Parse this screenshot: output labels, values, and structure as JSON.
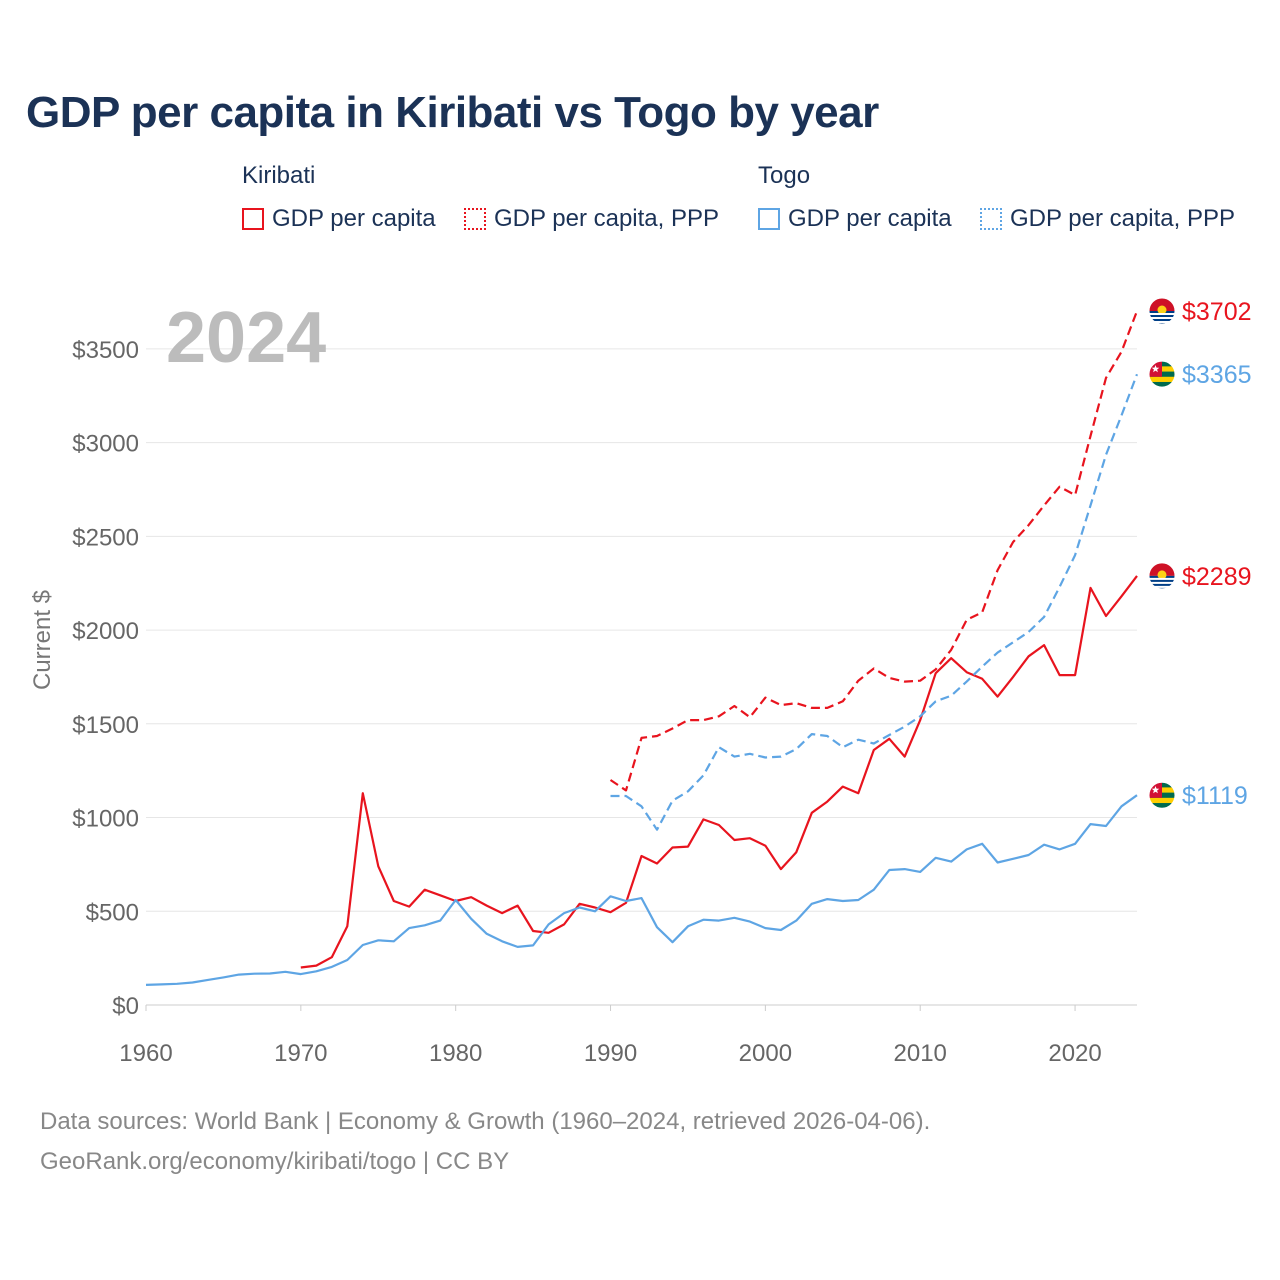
{
  "chart_data": {
    "type": "line",
    "title": "GDP per capita in Kiribati vs Togo by year",
    "year_label": "2024",
    "ylabel": "Current $",
    "xlabel": "",
    "xlim": [
      1960,
      2024
    ],
    "ylim": [
      0,
      3750
    ],
    "x_ticks": [
      1960,
      1970,
      1980,
      1990,
      2000,
      2010,
      2020
    ],
    "x_tick_labels": [
      "1960",
      "1970",
      "1980",
      "1990",
      "2000",
      "2010",
      "2020"
    ],
    "y_ticks": [
      0,
      500,
      1000,
      1500,
      2000,
      2500,
      3000,
      3500
    ],
    "y_tick_labels": [
      "$0",
      "$500",
      "$1000",
      "$1500",
      "$2000",
      "$2500",
      "$3000",
      "$3500"
    ],
    "grid": true,
    "legend": {
      "kiribati": "Kiribati",
      "togo": "Togo",
      "gdp": "GDP per capita",
      "ppp": "GDP per capita, PPP"
    },
    "colors": {
      "kiribati": "#e8141e",
      "togo": "#5ea5e4"
    },
    "end_labels": {
      "kiribati_ppp": "$3702",
      "togo_ppp": "$3365",
      "kiribati_gdp": "$2289",
      "togo_gdp": "$1119"
    },
    "series": [
      {
        "name": "Kiribati GDP per capita",
        "country": "kiribati",
        "style": "solid",
        "start": 1970,
        "values": [
          200,
          210,
          255,
          420,
          1130,
          740,
          555,
          525,
          615,
          585,
          555,
          575,
          530,
          490,
          530,
          395,
          385,
          430,
          540,
          520,
          495,
          545,
          795,
          755,
          840,
          845,
          990,
          960,
          880,
          890,
          850,
          725,
          815,
          1025,
          1085,
          1165,
          1130,
          1360,
          1420,
          1325,
          1520,
          1770,
          1850,
          1775,
          1740,
          1645,
          1750,
          1860,
          1920,
          1760,
          1760,
          2225,
          2075,
          2180,
          2289
        ]
      },
      {
        "name": "Kiribati GDP per capita, PPP",
        "country": "kiribati",
        "style": "dashed",
        "start": 1990,
        "values": [
          1200,
          1145,
          1425,
          1435,
          1475,
          1520,
          1520,
          1540,
          1595,
          1535,
          1640,
          1600,
          1610,
          1585,
          1585,
          1620,
          1730,
          1795,
          1745,
          1725,
          1730,
          1790,
          1895,
          2055,
          2095,
          2320,
          2470,
          2560,
          2665,
          2765,
          2720,
          3035,
          3345,
          3485,
          3702
        ]
      },
      {
        "name": "Togo GDP per capita",
        "country": "togo",
        "style": "solid",
        "start": 1960,
        "values": [
          107,
          110,
          113,
          120,
          134,
          147,
          162,
          167,
          168,
          177,
          165,
          180,
          203,
          240,
          320,
          345,
          340,
          410,
          425,
          450,
          560,
          460,
          380,
          340,
          310,
          318,
          430,
          490,
          520,
          500,
          580,
          555,
          570,
          415,
          335,
          420,
          455,
          450,
          465,
          445,
          410,
          400,
          450,
          540,
          565,
          555,
          560,
          615,
          720,
          725,
          710,
          785,
          765,
          830,
          860,
          760,
          780,
          800,
          855,
          830,
          860,
          965,
          955,
          1060,
          1119
        ]
      },
      {
        "name": "Togo GDP per capita, PPP",
        "country": "togo",
        "style": "dashed",
        "start": 1990,
        "values": [
          1115,
          1115,
          1060,
          935,
          1090,
          1140,
          1225,
          1375,
          1325,
          1340,
          1320,
          1325,
          1365,
          1445,
          1435,
          1375,
          1415,
          1395,
          1440,
          1485,
          1540,
          1620,
          1650,
          1725,
          1805,
          1880,
          1935,
          1990,
          2070,
          2230,
          2400,
          2665,
          2935,
          3145,
          3365
        ]
      }
    ],
    "sources": {
      "line1": "Data sources: World Bank | Economy & Growth (1960–2024, retrieved 2026-04-06).",
      "line2": "GeoRank.org/economy/kiribati/togo | CC BY"
    }
  }
}
